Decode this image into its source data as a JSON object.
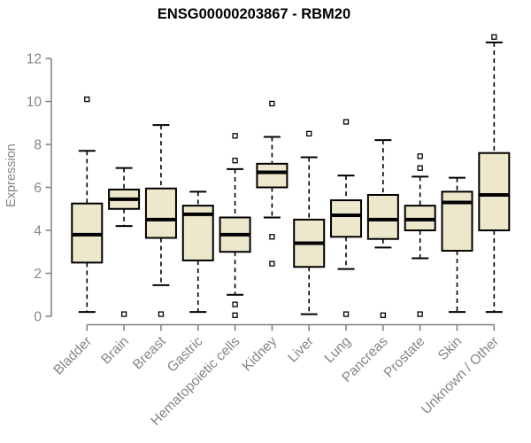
{
  "chart_data": {
    "type": "boxplot",
    "title": "ENSG00000203867 - RBM20",
    "ylabel": "Expression",
    "xlabel": "",
    "yticks": [
      0,
      2,
      4,
      6,
      8,
      10,
      12
    ],
    "ylim": [
      0,
      13.3
    ],
    "grid": false,
    "legend": "none",
    "categories": [
      "Bladder",
      "Brain",
      "Breast",
      "Gastric",
      "Hematopoietic cells",
      "Kidney",
      "Liver",
      "Lung",
      "Pancreas",
      "Prostate",
      "Skin",
      "Unknown / Other"
    ],
    "boxes": [
      {
        "category": "Bladder",
        "whisker_low": 0.2,
        "q1": 2.5,
        "median": 3.8,
        "q3": 5.25,
        "whisker_high": 7.7,
        "outliers": [
          10.1
        ]
      },
      {
        "category": "Brain",
        "whisker_low": 4.2,
        "q1": 5.0,
        "median": 5.45,
        "q3": 5.9,
        "whisker_high": 6.9,
        "outliers": [
          0.1
        ]
      },
      {
        "category": "Breast",
        "whisker_low": 1.45,
        "q1": 3.65,
        "median": 4.5,
        "q3": 5.95,
        "whisker_high": 8.9,
        "outliers": [
          0.1
        ]
      },
      {
        "category": "Gastric",
        "whisker_low": 0.2,
        "q1": 2.6,
        "median": 4.75,
        "q3": 5.15,
        "whisker_high": 5.8,
        "outliers": []
      },
      {
        "category": "Hematopoietic cells",
        "whisker_low": 1.0,
        "q1": 3.0,
        "median": 3.8,
        "q3": 4.6,
        "whisker_high": 6.85,
        "outliers": [
          8.4,
          7.25,
          0.55,
          0.05
        ]
      },
      {
        "category": "Kidney",
        "whisker_low": 4.6,
        "q1": 6.0,
        "median": 6.7,
        "q3": 7.1,
        "whisker_high": 8.35,
        "outliers": [
          9.9,
          3.7,
          2.45
        ]
      },
      {
        "category": "Liver",
        "whisker_low": 0.1,
        "q1": 2.3,
        "median": 3.4,
        "q3": 4.5,
        "whisker_high": 7.4,
        "outliers": [
          8.5
        ]
      },
      {
        "category": "Lung",
        "whisker_low": 2.2,
        "q1": 3.7,
        "median": 4.7,
        "q3": 5.4,
        "whisker_high": 6.55,
        "outliers": [
          9.05,
          0.1
        ]
      },
      {
        "category": "Pancreas",
        "whisker_low": 3.2,
        "q1": 3.6,
        "median": 4.5,
        "q3": 5.65,
        "whisker_high": 8.2,
        "outliers": [
          0.05
        ]
      },
      {
        "category": "Prostate",
        "whisker_low": 2.7,
        "q1": 4.0,
        "median": 4.5,
        "q3": 5.15,
        "whisker_high": 6.5,
        "outliers": [
          7.45,
          6.9,
          0.1
        ]
      },
      {
        "category": "Skin",
        "whisker_low": 0.2,
        "q1": 3.05,
        "median": 5.3,
        "q3": 5.8,
        "whisker_high": 6.45,
        "outliers": []
      },
      {
        "category": "Unknown / Other",
        "whisker_low": 0.2,
        "q1": 4.0,
        "median": 5.65,
        "q3": 7.6,
        "whisker_high": 12.75,
        "outliers": [
          13.0
        ]
      }
    ],
    "colors": {
      "box_fill": "#EDE7CB",
      "box_border": "#000000",
      "median": "#000000",
      "whisker": "#000000",
      "outlier_fill": "#FFFFFF",
      "axis": "#7E7E7E",
      "tick_label": "#858585",
      "title": "#000000",
      "background": "#FFFFFF"
    }
  }
}
